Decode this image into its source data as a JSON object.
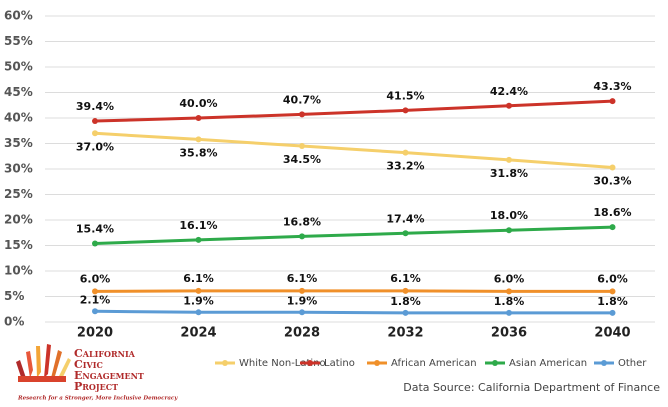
{
  "chart_data": {
    "type": "line",
    "categories": [
      "2020",
      "2024",
      "2028",
      "2032",
      "2036",
      "2040"
    ],
    "series": [
      {
        "name": "White Non-Latino",
        "color": "#f5cf6b",
        "values": [
          37.0,
          35.8,
          34.5,
          33.2,
          31.8,
          30.3
        ],
        "value_labels": [
          "37.0%",
          "35.8%",
          "34.5%",
          "33.2%",
          "31.8%",
          "30.3%"
        ]
      },
      {
        "name": "Latino",
        "color": "#cc3329",
        "values": [
          39.4,
          40.0,
          40.7,
          41.5,
          42.4,
          43.3
        ],
        "value_labels": [
          "39.4%",
          "40.0%",
          "40.7%",
          "41.5%",
          "42.4%",
          "43.3%"
        ]
      },
      {
        "name": "African American",
        "color": "#f0902a",
        "values": [
          6.0,
          6.1,
          6.1,
          6.1,
          6.0,
          6.0
        ],
        "value_labels": [
          "6.0%",
          "6.1%",
          "6.1%",
          "6.1%",
          "6.0%",
          "6.0%"
        ]
      },
      {
        "name": "Asian American",
        "color": "#2eaa4a",
        "values": [
          15.4,
          16.1,
          16.8,
          17.4,
          18.0,
          18.6
        ],
        "value_labels": [
          "15.4%",
          "16.1%",
          "16.8%",
          "17.4%",
          "18.0%",
          "18.6%"
        ]
      },
      {
        "name": "Other",
        "color": "#5b9bd5",
        "values": [
          2.1,
          1.9,
          1.9,
          1.8,
          1.8,
          1.8
        ],
        "value_labels": [
          "2.1%",
          "1.9%",
          "1.9%",
          "1.8%",
          "1.8%",
          "1.8%"
        ]
      }
    ],
    "ylim": [
      0,
      60
    ],
    "yticks": [
      {
        "value": 0,
        "label": "0%"
      },
      {
        "value": 5,
        "label": "5%"
      },
      {
        "value": 10,
        "label": "10%"
      },
      {
        "value": 15,
        "label": "15%"
      },
      {
        "value": 20,
        "label": "20%"
      },
      {
        "value": 25,
        "label": "25%"
      },
      {
        "value": 30,
        "label": "30%"
      },
      {
        "value": 35,
        "label": "35%"
      },
      {
        "value": 40,
        "label": "40%"
      },
      {
        "value": 45,
        "label": "45%"
      },
      {
        "value": 50,
        "label": "50%"
      },
      {
        "value": 55,
        "label": "55%"
      },
      {
        "value": 60,
        "label": "60%"
      }
    ],
    "grid": true,
    "legend": "bottom",
    "source": "Data Source: California Department of Finance",
    "logo": {
      "lines": [
        "California",
        "Civic",
        "Engagement",
        "Project"
      ],
      "tagline": "Research for a Stronger, More Inclusive Democracy"
    }
  }
}
